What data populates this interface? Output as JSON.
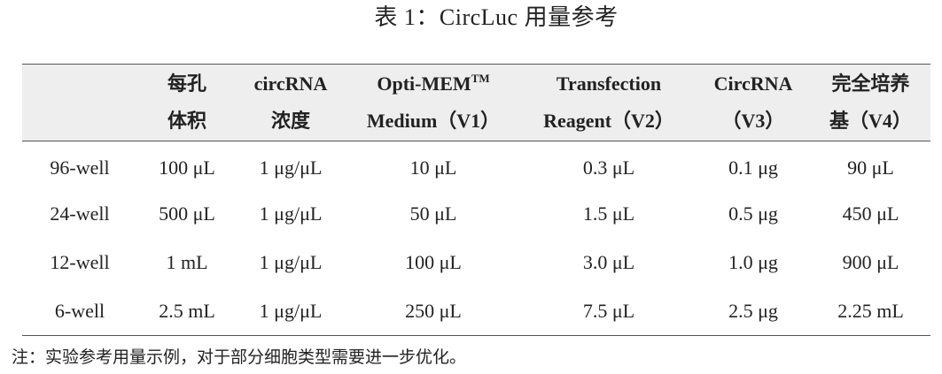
{
  "caption": "表 1：CircLuc 用量参考",
  "table": {
    "headers": [
      {
        "line1": "",
        "line2": ""
      },
      {
        "line1": "每孔",
        "line2": "体积"
      },
      {
        "line1": "circRNA",
        "line2": "浓度"
      },
      {
        "line1": "Opti-MEM",
        "line1_sup": "TM",
        "line2": "Medium（V1）"
      },
      {
        "line1": "Transfection",
        "line2": "Reagent（V2）"
      },
      {
        "line1": "CircRNA",
        "line2": "（V3）"
      },
      {
        "line1": "完全培养",
        "line2": "基（V4）"
      }
    ],
    "rows": [
      [
        "96-well",
        "100 μL",
        "1 μg/μL",
        "10 μL",
        "0.3 μL",
        "0.1 μg",
        "90 μL"
      ],
      [
        "24-well",
        "500 μL",
        "1 μg/μL",
        "50 μL",
        "1.5 μL",
        "0.5 μg",
        "450 μL"
      ],
      [
        "12-well",
        "1 mL",
        "1 μg/μL",
        "100 μL",
        "3.0 μL",
        "1.0 μg",
        "900 μL"
      ],
      [
        "6-well",
        "2.5 mL",
        "1 μg/μL",
        "250 μL",
        "7.5 μL",
        "2.5 μg",
        "2.25 mL"
      ]
    ]
  },
  "note": "注：实验参考用量示例，对于部分细胞类型需要进一步优化。"
}
